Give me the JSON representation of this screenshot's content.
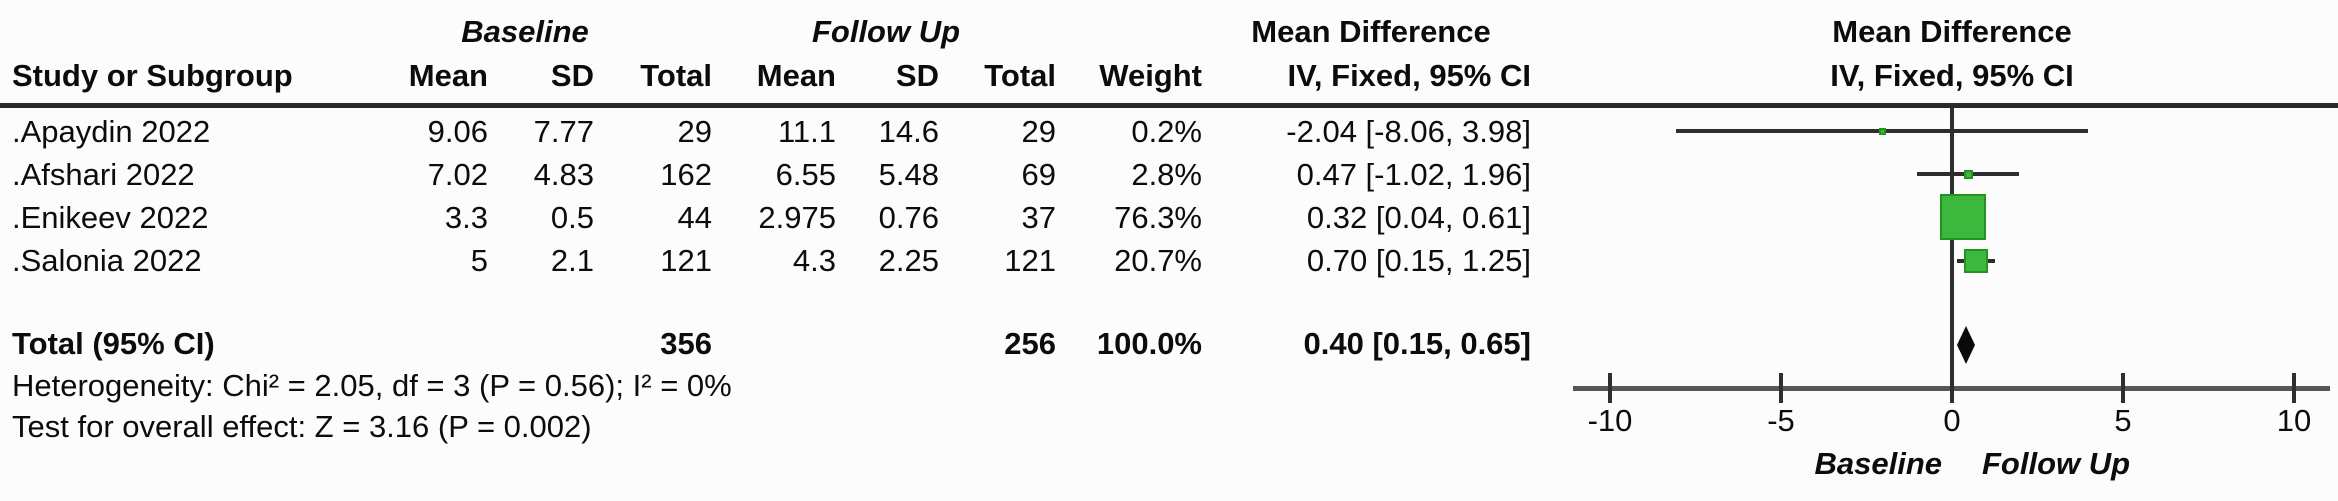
{
  "header": {
    "study": "Study or Subgroup",
    "baseline": "Baseline",
    "follow_up": "Follow Up",
    "mean": "Mean",
    "sd": "SD",
    "total": "Total",
    "weight": "Weight",
    "mean_difference": "Mean Difference",
    "iv_fixed": "IV, Fixed, 95% CI"
  },
  "rows": [
    {
      "study": ".Apaydin 2022",
      "b_mean": "9.06",
      "b_sd": "7.77",
      "b_total": "29",
      "f_mean": "11.1",
      "f_sd": "14.6",
      "f_total": "29",
      "weight": "0.2%",
      "ci": "-2.04 [-8.06, 3.98]"
    },
    {
      "study": ".Afshari 2022",
      "b_mean": "7.02",
      "b_sd": "4.83",
      "b_total": "162",
      "f_mean": "6.55",
      "f_sd": "5.48",
      "f_total": "69",
      "weight": "2.8%",
      "ci": "0.47 [-1.02, 1.96]"
    },
    {
      "study": ".Enikeev 2022",
      "b_mean": "3.3",
      "b_sd": "0.5",
      "b_total": "44",
      "f_mean": "2.975",
      "f_sd": "0.76",
      "f_total": "37",
      "weight": "76.3%",
      "ci": "0.32 [0.04, 0.61]"
    },
    {
      "study": ".Salonia 2022",
      "b_mean": "5",
      "b_sd": "2.1",
      "b_total": "121",
      "f_mean": "4.3",
      "f_sd": "2.25",
      "f_total": "121",
      "weight": "20.7%",
      "ci": "0.70 [0.15, 1.25]"
    }
  ],
  "total_row": {
    "label": "Total (95% CI)",
    "b_total": "356",
    "f_total": "256",
    "weight": "100.0%",
    "ci": "0.40 [0.15, 0.65]"
  },
  "footer": {
    "heterogeneity": "Heterogeneity: Chi² = 2.05, df = 3 (P = 0.56); I² = 0%",
    "overall_effect": "Test for overall effect: Z = 3.16 (P = 0.002)"
  },
  "axis": {
    "tick_labels": [
      "-10",
      "-5",
      "0",
      "5",
      "10"
    ],
    "label_left": "Baseline",
    "label_right": "Follow Up"
  },
  "colors": {
    "marker_green": "#3cb93c",
    "marker_green_border": "#23941f",
    "diamond_black": "#0a0a0a",
    "ci_line": "#2e2e2e",
    "axis_gray": "#565656"
  },
  "chart_data": {
    "type": "scatter",
    "subtype": "forest_plot_fixed_effect_mean_difference",
    "title": "Mean Difference, IV, Fixed, 95% CI",
    "effect_measure": "Mean Difference",
    "model": "IV, Fixed, 95% CI",
    "x_axis": {
      "ticks": [
        -10,
        -5,
        0,
        5,
        10
      ],
      "range": [
        -11.2,
        11.2
      ],
      "label_left_of_zero": "Baseline",
      "label_right_of_zero": "Follow Up"
    },
    "studies": [
      {
        "name": ".Apaydin 2022",
        "baseline": {
          "mean": 9.06,
          "sd": 7.77,
          "total": 29
        },
        "follow_up": {
          "mean": 11.1,
          "sd": 14.6,
          "total": 29
        },
        "weight_pct": 0.2,
        "md": -2.04,
        "ci_low": -8.06,
        "ci_high": 3.98
      },
      {
        "name": ".Afshari 2022",
        "baseline": {
          "mean": 7.02,
          "sd": 4.83,
          "total": 162
        },
        "follow_up": {
          "mean": 6.55,
          "sd": 5.48,
          "total": 69
        },
        "weight_pct": 2.8,
        "md": 0.47,
        "ci_low": -1.02,
        "ci_high": 1.96
      },
      {
        "name": ".Enikeev 2022",
        "baseline": {
          "mean": 3.3,
          "sd": 0.5,
          "total": 44
        },
        "follow_up": {
          "mean": 2.975,
          "sd": 0.76,
          "total": 37
        },
        "weight_pct": 76.3,
        "md": 0.32,
        "ci_low": 0.04,
        "ci_high": 0.61
      },
      {
        "name": ".Salonia 2022",
        "baseline": {
          "mean": 5,
          "sd": 2.1,
          "total": 121
        },
        "follow_up": {
          "mean": 4.3,
          "sd": 2.25,
          "total": 121
        },
        "weight_pct": 20.7,
        "md": 0.7,
        "ci_low": 0.15,
        "ci_high": 1.25
      }
    ],
    "total": {
      "label": "Total (95% CI)",
      "baseline_total": 356,
      "follow_up_total": 256,
      "weight_pct": 100.0,
      "md": 0.4,
      "ci_low": 0.15,
      "ci_high": 0.65
    },
    "heterogeneity": {
      "chi2": 2.05,
      "df": 3,
      "p": 0.56,
      "i2_pct": 0
    },
    "overall_effect": {
      "z": 3.16,
      "p": 0.002
    },
    "legend_position": "none",
    "grid": false
  }
}
